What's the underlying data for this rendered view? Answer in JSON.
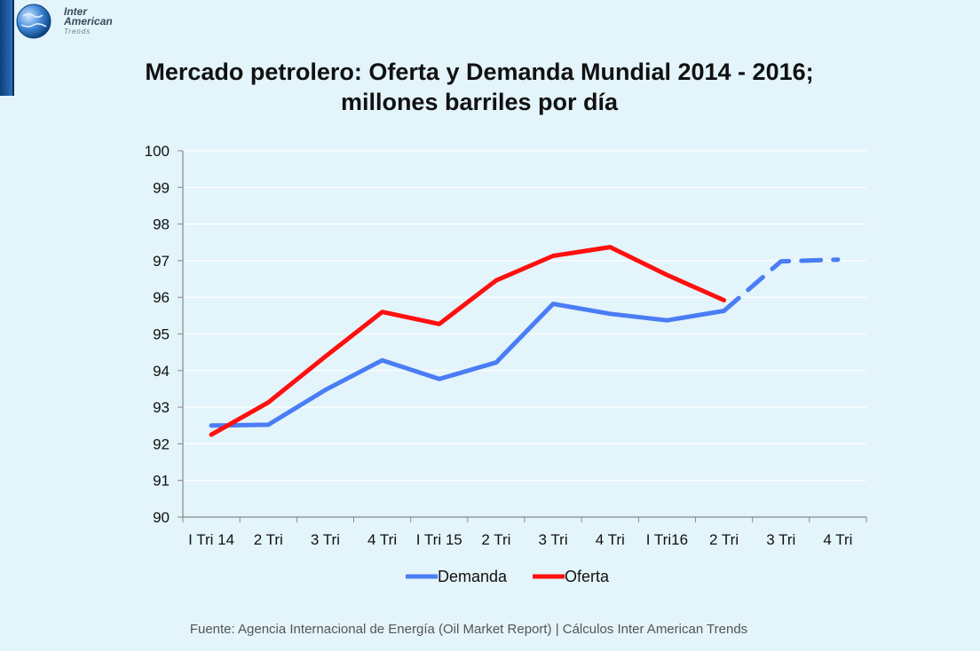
{
  "logo": {
    "line1": "Inter",
    "line2": "American",
    "line3": "Trends",
    "icon": "globe-icon"
  },
  "title": {
    "line1": "Mercado petrolero: Oferta y Demanda Mundial 2014 - 2016;",
    "line2": "millones barriles por día"
  },
  "source": "Fuente: Agencia Internacional de Energía  (Oil Market Report)  | Cálculos Inter American Trends",
  "chart_data": {
    "type": "line",
    "categories": [
      "I Tri 14",
      "2 Tri",
      "3 Tri",
      "4 Tri",
      "I Tri 15",
      "2 Tri",
      "3 Tri",
      "4 Tri",
      "I Tri16",
      "2 Tri",
      "3 Tri",
      "4 Tri"
    ],
    "ylim": [
      90,
      100
    ],
    "yticks": [
      90,
      91,
      92,
      93,
      94,
      95,
      96,
      97,
      98,
      99,
      100
    ],
    "grid": true,
    "legend_position": "bottom",
    "series": [
      {
        "name": "Demanda",
        "color": "#4a7df5",
        "values": [
          92.5,
          92.52,
          93.47,
          94.28,
          93.77,
          94.22,
          95.82,
          95.55,
          95.37,
          95.63,
          96.98,
          97.03
        ],
        "dashed_from_index": 9
      },
      {
        "name": "Oferta",
        "color": "#ff0f0f",
        "values": [
          92.25,
          93.13,
          94.38,
          95.6,
          95.27,
          96.46,
          97.13,
          97.37,
          96.61,
          95.92,
          null,
          null
        ]
      }
    ]
  }
}
